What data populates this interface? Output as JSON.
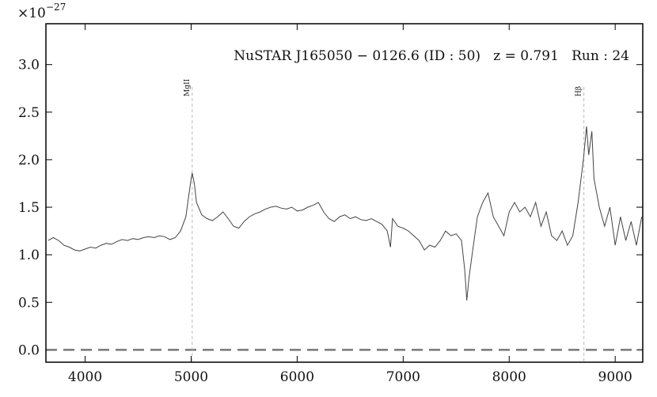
{
  "chart_data": {
    "type": "line",
    "annotation": "NuSTAR J165050 − 0126.6 (ID : 50)   z = 0.791   Run : 24",
    "multiplier": "×10",
    "multiplier_exponent": "−27",
    "xlim": [
      3630,
      9260
    ],
    "ylim": [
      -0.13,
      3.43
    ],
    "xticks": [
      4000,
      5000,
      6000,
      7000,
      8000,
      9000
    ],
    "yticks": [
      {
        "value": 0,
        "label": "0.0"
      },
      0.5,
      {
        "value": 1,
        "label": "1.0"
      },
      1.5,
      {
        "value": 2,
        "label": "2.0"
      },
      2.5,
      {
        "value": 3,
        "label": "3.0"
      }
    ],
    "reference_lines": [
      {
        "label": "MgII",
        "x": 5010
      },
      {
        "label": "Hβ",
        "x": 8705
      }
    ],
    "zero_line": 0,
    "series": [
      {
        "color": "#444444",
        "x": [
          3650,
          3700,
          3750,
          3800,
          3850,
          3900,
          3950,
          4000,
          4050,
          4100,
          4150,
          4200,
          4250,
          4300,
          4350,
          4400,
          4450,
          4500,
          4550,
          4600,
          4650,
          4700,
          4750,
          4800,
          4850,
          4900,
          4950,
          4975,
          5000,
          5010,
          5030,
          5050,
          5100,
          5150,
          5200,
          5250,
          5300,
          5350,
          5400,
          5450,
          5500,
          5550,
          5600,
          5650,
          5700,
          5750,
          5800,
          5850,
          5900,
          5950,
          6000,
          6050,
          6100,
          6150,
          6200,
          6250,
          6300,
          6350,
          6400,
          6450,
          6500,
          6550,
          6600,
          6650,
          6700,
          6750,
          6800,
          6850,
          6880,
          6900,
          6950,
          7000,
          7050,
          7100,
          7150,
          7200,
          7250,
          7300,
          7350,
          7400,
          7450,
          7500,
          7550,
          7580,
          7600,
          7620,
          7650,
          7700,
          7750,
          7800,
          7850,
          7900,
          7950,
          8000,
          8050,
          8100,
          8150,
          8200,
          8250,
          8300,
          8350,
          8400,
          8450,
          8500,
          8550,
          8600,
          8650,
          8700,
          8730,
          8750,
          8780,
          8800,
          8850,
          8900,
          8950,
          9000,
          9050,
          9100,
          9150,
          9200,
          9250
        ],
        "values": [
          1.15,
          1.18,
          1.15,
          1.1,
          1.08,
          1.05,
          1.04,
          1.06,
          1.08,
          1.07,
          1.1,
          1.12,
          1.11,
          1.14,
          1.16,
          1.15,
          1.17,
          1.16,
          1.18,
          1.19,
          1.18,
          1.2,
          1.19,
          1.16,
          1.18,
          1.25,
          1.4,
          1.6,
          1.8,
          1.86,
          1.75,
          1.55,
          1.42,
          1.38,
          1.36,
          1.4,
          1.45,
          1.38,
          1.3,
          1.28,
          1.35,
          1.4,
          1.43,
          1.45,
          1.48,
          1.5,
          1.51,
          1.49,
          1.48,
          1.5,
          1.46,
          1.47,
          1.5,
          1.52,
          1.55,
          1.45,
          1.38,
          1.35,
          1.4,
          1.42,
          1.38,
          1.4,
          1.37,
          1.36,
          1.38,
          1.35,
          1.32,
          1.25,
          1.08,
          1.38,
          1.3,
          1.28,
          1.25,
          1.2,
          1.15,
          1.05,
          1.1,
          1.08,
          1.15,
          1.25,
          1.2,
          1.22,
          1.15,
          0.85,
          0.52,
          0.75,
          1.0,
          1.4,
          1.55,
          1.65,
          1.4,
          1.3,
          1.2,
          1.45,
          1.55,
          1.45,
          1.5,
          1.4,
          1.55,
          1.3,
          1.45,
          1.2,
          1.15,
          1.25,
          1.1,
          1.2,
          1.55,
          2.0,
          2.35,
          2.05,
          2.3,
          1.8,
          1.5,
          1.3,
          1.5,
          1.1,
          1.4,
          1.15,
          1.35,
          1.1,
          1.4
        ]
      }
    ]
  }
}
